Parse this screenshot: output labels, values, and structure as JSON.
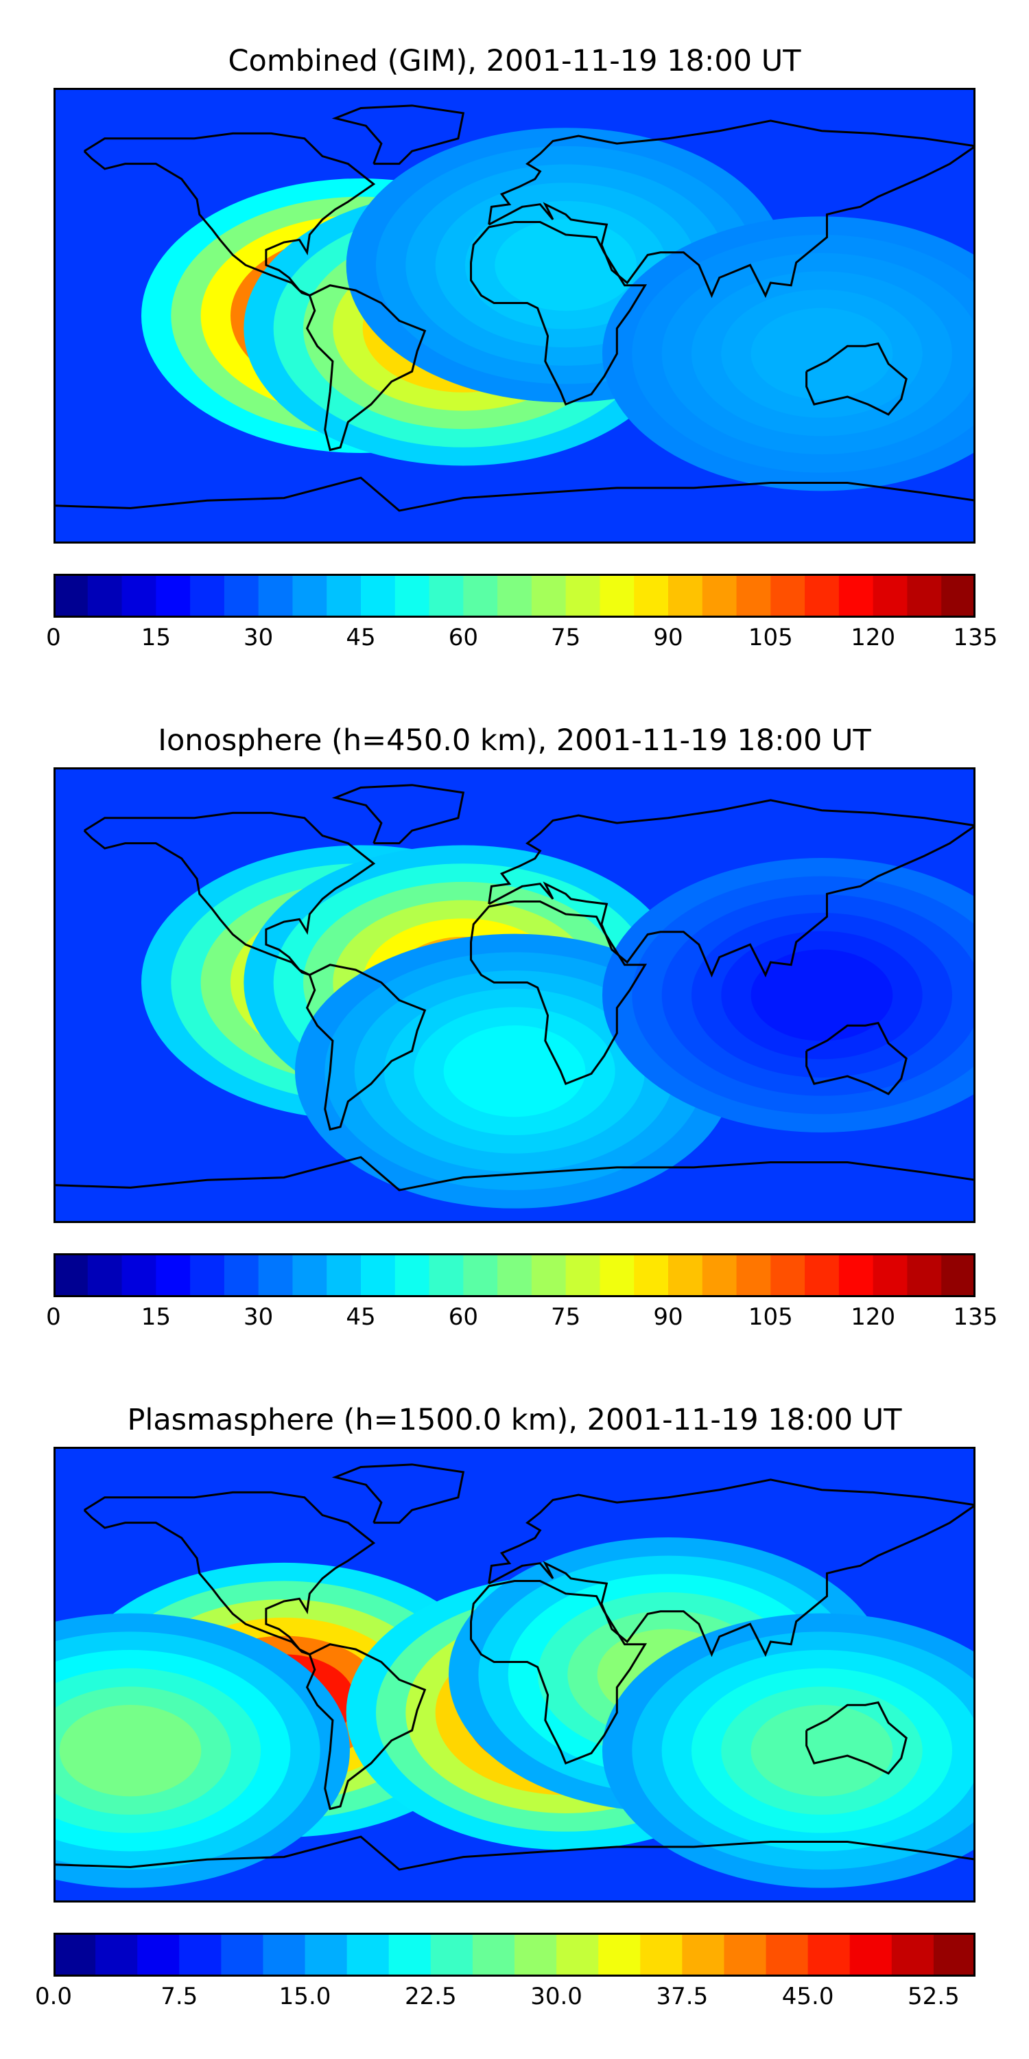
{
  "panels": [
    {
      "title": "Combined (GIM), 2001-11-19 18:00 UT",
      "colorbar": {
        "vmin": 0,
        "vmax": 135,
        "n_levels": 27,
        "colormap": "jet",
        "ticks": [
          "0",
          "15",
          "30",
          "45",
          "60",
          "75",
          "90",
          "105",
          "120",
          "135"
        ]
      },
      "features": [
        {
          "lon": -60,
          "lat": 0,
          "value": 135
        },
        {
          "lon": -20,
          "lat": -5,
          "value": 100
        },
        {
          "lon": 20,
          "lat": 20,
          "value": 45
        },
        {
          "lon": 120,
          "lat": -15,
          "value": 40
        }
      ]
    },
    {
      "title": "Ionosphere  (h=450.0 km), 2001-11-19 18:00 UT",
      "colorbar": {
        "vmin": 0,
        "vmax": 135,
        "n_levels": 27,
        "colormap": "jet",
        "ticks": [
          "0",
          "15",
          "30",
          "45",
          "60",
          "75",
          "90",
          "105",
          "120",
          "135"
        ]
      },
      "features": [
        {
          "lon": -60,
          "lat": 5,
          "value": 100
        },
        {
          "lon": -20,
          "lat": 5,
          "value": 95
        },
        {
          "lon": 0,
          "lat": -30,
          "value": 50
        },
        {
          "lon": 120,
          "lat": 0,
          "value": 20
        }
      ]
    },
    {
      "title": "Plasmasphere (h=1500.0 km), 2001-11-19 18:00 UT",
      "colorbar": {
        "vmin": 0,
        "vmax": 55,
        "n_levels": 22,
        "colormap": "jet",
        "ticks": [
          "0.0",
          "7.5",
          "15.0",
          "22.5",
          "30.0",
          "37.5",
          "45.0",
          "52.5"
        ]
      },
      "features": [
        {
          "lon": -90,
          "lat": -10,
          "value": 47
        },
        {
          "lon": 20,
          "lat": -15,
          "value": 48
        },
        {
          "lon": 60,
          "lat": 0,
          "value": 28
        },
        {
          "lon": -150,
          "lat": -30,
          "value": 27
        },
        {
          "lon": 120,
          "lat": -30,
          "value": 25
        }
      ]
    }
  ]
}
